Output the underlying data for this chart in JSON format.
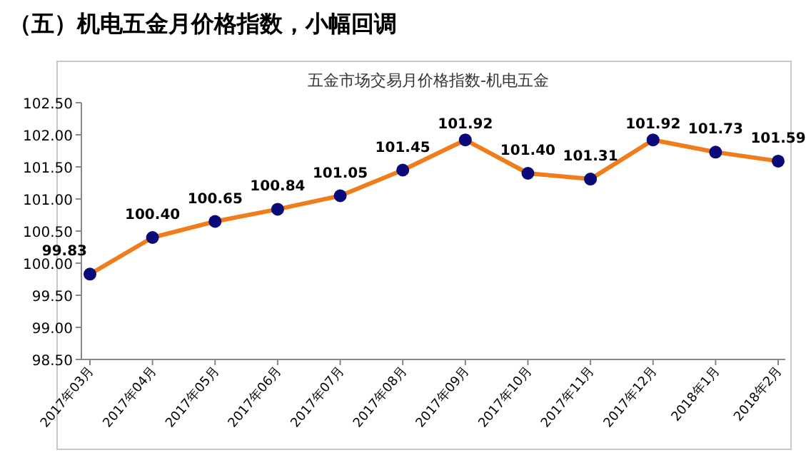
{
  "chart_data": {
    "type": "line",
    "title": "五金市场交易月价格指数-机电五金",
    "annotations": [
      "（五）机电五金月价格指数，小幅回调"
    ],
    "categories": [
      "2017年03月",
      "2017年04月",
      "2017年05月",
      "2017年06月",
      "2017年07月",
      "2017年08月",
      "2017年09月",
      "2017年10月",
      "2017年11月",
      "2017年12月",
      "2018年1月",
      "2018年2月"
    ],
    "series": [
      {
        "color": "#f07d1c",
        "values": [
          99.83,
          100.4,
          100.65,
          100.84,
          101.05,
          101.45,
          101.92,
          101.4,
          101.31,
          101.92,
          101.73,
          101.59
        ],
        "value_labels": [
          "99.83",
          "100.40",
          "100.65",
          "100.84",
          "101.05",
          "101.45",
          "101.92",
          "101.40",
          "101.31",
          "101.92",
          "101.73",
          "101.59"
        ]
      }
    ],
    "marker": "circle",
    "grid": false,
    "ylim": [
      98.5,
      102.5
    ],
    "yticks": [
      {
        "value": 98.5,
        "label": "98.50"
      },
      {
        "value": 99,
        "label": "99.00"
      },
      {
        "value": 99.5,
        "label": "99.50"
      },
      {
        "value": 100,
        "label": "100.00"
      },
      {
        "value": 100.5,
        "label": "100.50"
      },
      {
        "value": 101,
        "label": "101.00"
      },
      {
        "value": 101.5,
        "label": "101.50"
      },
      {
        "value": 102,
        "label": "102.00"
      },
      {
        "value": 102.5,
        "label": "102.50"
      }
    ]
  }
}
